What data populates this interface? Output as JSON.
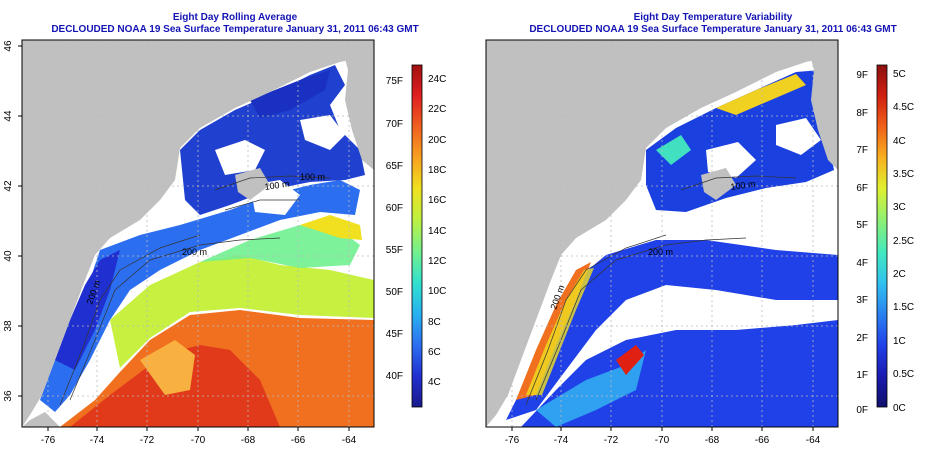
{
  "panels": [
    {
      "id": "mean",
      "title": "Eight Day Rolling Average",
      "subtitle": "DECLOUDED NOAA 19 Sea Surface Temperature January 31, 2011 06:43 GMT",
      "contour_labels": [
        "100 m",
        "200 m",
        "200 m",
        "100 m"
      ],
      "colorbar": {
        "left_labels": [
          "75F",
          "70F",
          "65F",
          "60F",
          "55F",
          "50F",
          "45F",
          "40F"
        ],
        "right_labels": [
          "24C",
          "22C",
          "20C",
          "18C",
          "16C",
          "14C",
          "12C",
          "10C",
          "8C",
          "6C",
          "4C"
        ],
        "colors": [
          "#1a1a8c",
          "#2030d0",
          "#2c6ef0",
          "#28b0f0",
          "#30e0d0",
          "#70f090",
          "#c0f040",
          "#f0e020",
          "#f8a020",
          "#f06020",
          "#e02020",
          "#a01010"
        ]
      }
    },
    {
      "id": "variability",
      "title": "Eight Day Temperature Variability",
      "subtitle": "DECLOUDED NOAA 19 Sea Surface Temperature January 31, 2011 06:43 GMT",
      "contour_labels": [
        "100 m",
        "200 m",
        "200 m"
      ],
      "colorbar": {
        "left_labels": [
          "9F",
          "8F",
          "7F",
          "6F",
          "5F",
          "4F",
          "3F",
          "2F",
          "1F",
          "0F"
        ],
        "right_labels": [
          "5C",
          "4.5C",
          "4C",
          "3.5C",
          "3C",
          "2.5C",
          "2C",
          "1.5C",
          "1C",
          "0.5C",
          "0C"
        ],
        "colors": [
          "#10106c",
          "#1a1ab0",
          "#2040e8",
          "#2a80f0",
          "#30c0f0",
          "#40e8c0",
          "#90f070",
          "#e0f030",
          "#f8b020",
          "#f06018",
          "#d02010",
          "#8c1010"
        ]
      }
    }
  ],
  "axes": {
    "x_ticks": [
      "-76",
      "-74",
      "-72",
      "-70",
      "-68",
      "-66",
      "-64"
    ],
    "y_ticks": [
      "36",
      "38",
      "40",
      "42",
      "44",
      "46"
    ]
  },
  "colors": {
    "title": "#1414b4",
    "land": "#c0c0c0",
    "cloud": "#ffffff"
  }
}
